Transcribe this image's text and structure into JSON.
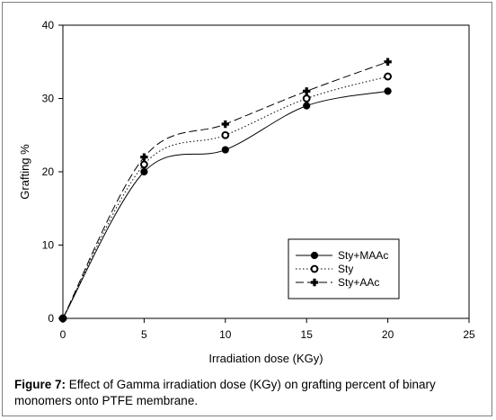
{
  "chart_data": {
    "type": "line",
    "xlabel": "Irradiation dose (KGy)",
    "ylabel": "Grafting %",
    "xlim": [
      0,
      25
    ],
    "ylim": [
      0,
      40
    ],
    "x_ticks": [
      0,
      5,
      10,
      15,
      20,
      25
    ],
    "y_ticks": [
      0,
      10,
      20,
      30,
      40
    ],
    "grid": false,
    "legend_position": "bottom-right",
    "series": [
      {
        "name": "Sty+MAAc",
        "x": [
          0,
          5,
          10,
          15,
          20
        ],
        "y": [
          0,
          20,
          23,
          29,
          31
        ],
        "line_style": "solid",
        "marker": "filled-circle"
      },
      {
        "name": "Sty",
        "x": [
          0,
          5,
          10,
          15,
          20
        ],
        "y": [
          0,
          21,
          25,
          30,
          33
        ],
        "line_style": "dotted",
        "marker": "open-circle"
      },
      {
        "name": "Sty+AAc",
        "x": [
          0,
          5,
          10,
          15,
          20
        ],
        "y": [
          0,
          22,
          26.5,
          31,
          35
        ],
        "line_style": "dashed",
        "marker": "filled-cross"
      }
    ]
  },
  "caption": {
    "label": "Figure 7:",
    "text": " Effect of Gamma irradiation dose (KGy)  on grafting percent of binary monomers onto PTFE membrane."
  }
}
